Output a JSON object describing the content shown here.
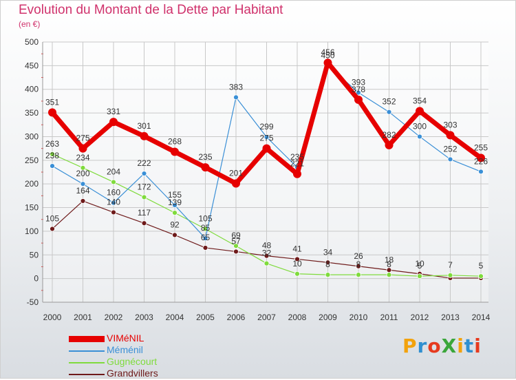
{
  "title": "Evolution du Montant de la Dette par Habitant",
  "unit_label": "(en €)",
  "chart_data": {
    "type": "line",
    "x": [
      "2000",
      "2001",
      "2002",
      "2003",
      "2004",
      "2005",
      "2006",
      "2007",
      "2008",
      "2009",
      "2010",
      "2011",
      "2012",
      "2013",
      "2014"
    ],
    "ylim": [
      -50,
      500
    ],
    "yticks": [
      -50,
      0,
      50,
      100,
      150,
      200,
      250,
      300,
      350,
      400,
      450,
      500
    ],
    "grid": true,
    "legend_position": "bottom-left",
    "series": [
      {
        "name": "VIMéNIL",
        "color": "#e60000",
        "values": [
          351,
          275,
          331,
          301,
          268,
          235,
          201,
          275,
          221,
          456,
          378,
          282,
          354,
          303,
          255
        ],
        "labels": [
          "351",
          "275",
          "331",
          "301",
          "268",
          "235",
          "201",
          "275",
          "221",
          "456",
          "378",
          "282",
          "354",
          "303",
          "255"
        ]
      },
      {
        "name": "Méménil",
        "color": "#3a8fd6",
        "values": [
          238,
          200,
          160,
          222,
          155,
          85,
          383,
          299,
          235,
          450,
          393,
          352,
          300,
          252,
          226
        ],
        "labels": [
          "238",
          "200",
          "160",
          "222",
          "155",
          "85",
          "383",
          "299",
          "235",
          "450",
          "393",
          "352",
          "300",
          "252",
          "226"
        ]
      },
      {
        "name": "Gugnécourt",
        "color": "#7fdb3c",
        "values": [
          263,
          234,
          204,
          172,
          139,
          105,
          69,
          32,
          10,
          8,
          8,
          8,
          5,
          7,
          5
        ],
        "labels": [
          "263",
          "234",
          "204",
          "172",
          "139",
          "105",
          "69",
          "32",
          "10",
          "8",
          "8",
          "8",
          "5",
          "7",
          "5"
        ]
      },
      {
        "name": "Grandvillers",
        "color": "#6e1a1a",
        "values": [
          105,
          164,
          140,
          117,
          92,
          65,
          57,
          48,
          41,
          34,
          26,
          18,
          10,
          1,
          1
        ],
        "labels": [
          "105",
          "164",
          "140",
          "117",
          "92",
          "65",
          "57",
          "48",
          "41",
          "34",
          "26",
          "18",
          "10",
          "",
          ""
        ]
      }
    ]
  },
  "logo": {
    "text": "ProXiti",
    "letter_colors": [
      "#f2a20c",
      "#2f8fd0",
      "#e63a1e",
      "#3aa63a",
      "#f2a20c",
      "#2f8fd0",
      "#e63a1e"
    ]
  }
}
